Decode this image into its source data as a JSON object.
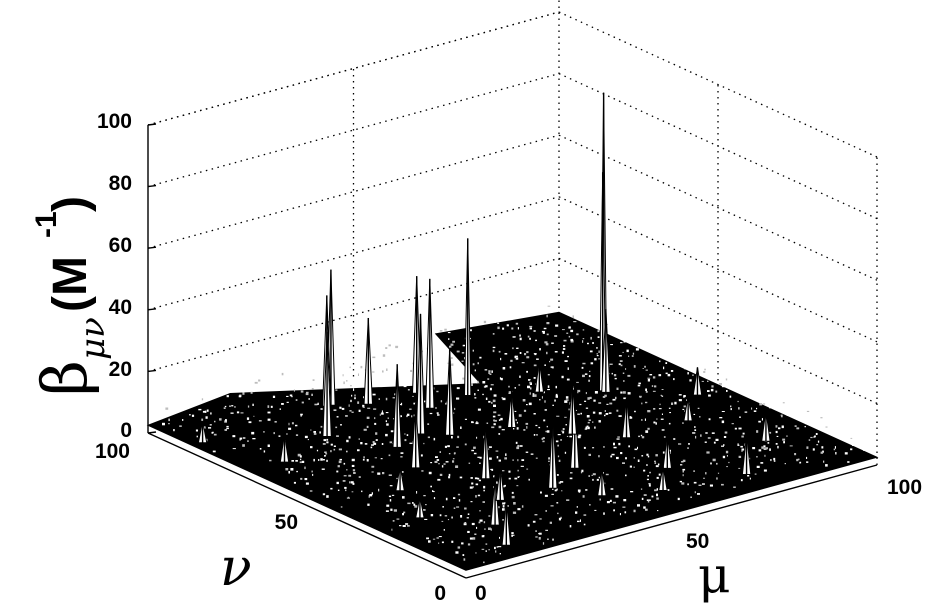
{
  "chart_data": {
    "type": "surface",
    "zlabel": {
      "symbol": "β",
      "subscript": "μν",
      "unit": "(M",
      "exponent": "-1",
      "close": ")"
    },
    "xlabel": "μ",
    "ylabel": "ν",
    "xlim": [
      0,
      100
    ],
    "ylim": [
      0,
      100
    ],
    "zlim": [
      0,
      100
    ],
    "x_ticks": [
      "0",
      "50",
      "100"
    ],
    "y_ticks": [
      "0",
      "50",
      "100"
    ],
    "z_ticks": [
      "0",
      "20",
      "40",
      "60",
      "80",
      "100"
    ],
    "grid": true,
    "surface_color": "#000000",
    "background": "#ffffff",
    "baseline_level": [
      0,
      5
    ],
    "peaks": [
      {
        "mu": 83,
        "nu": 64,
        "value": 97
      },
      {
        "mu": 82,
        "nu": 63,
        "value": 72
      },
      {
        "mu": 82,
        "nu": 62,
        "value": 28
      },
      {
        "mu": 60,
        "nu": 77,
        "value": 52
      },
      {
        "mu": 53,
        "nu": 84,
        "value": 39
      },
      {
        "mu": 36,
        "nu": 89,
        "value": 45
      },
      {
        "mu": 35,
        "nu": 89,
        "value": 37
      },
      {
        "mu": 50,
        "nu": 76,
        "value": 43
      },
      {
        "mu": 42,
        "nu": 85,
        "value": 29
      },
      {
        "mu": 25,
        "nu": 76,
        "value": 35
      },
      {
        "mu": 40,
        "nu": 66,
        "value": 40
      },
      {
        "mu": 44,
        "nu": 62,
        "value": 29
      },
      {
        "mu": 32,
        "nu": 63,
        "value": 28
      },
      {
        "mu": 28,
        "nu": 52,
        "value": 22
      },
      {
        "mu": 35,
        "nu": 39,
        "value": 20
      },
      {
        "mu": 42,
        "nu": 27,
        "value": 25
      },
      {
        "mu": 52,
        "nu": 33,
        "value": 23
      },
      {
        "mu": 63,
        "nu": 48,
        "value": 18
      },
      {
        "mu": 70,
        "nu": 40,
        "value": 14
      },
      {
        "mu": 21,
        "nu": 18,
        "value": 17
      },
      {
        "mu": 16,
        "nu": 8,
        "value": 16
      },
      {
        "mu": 4,
        "nu": 88,
        "value": 8
      },
      {
        "mu": 10,
        "nu": 70,
        "value": 10
      },
      {
        "mu": 76,
        "nu": 10,
        "value": 14
      },
      {
        "mu": 90,
        "nu": 22,
        "value": 11
      },
      {
        "mu": 66,
        "nu": 22,
        "value": 12
      },
      {
        "mu": 58,
        "nu": 13,
        "value": 9
      },
      {
        "mu": 30,
        "nu": 28,
        "value": 12
      },
      {
        "mu": 47,
        "nu": 18,
        "value": 10
      },
      {
        "mu": 18,
        "nu": 44,
        "value": 9
      },
      {
        "mu": 72,
        "nu": 70,
        "value": 11
      },
      {
        "mu": 56,
        "nu": 58,
        "value": 13
      },
      {
        "mu": 85,
        "nu": 40,
        "value": 9
      },
      {
        "mu": 12,
        "nu": 30,
        "value": 8
      },
      {
        "mu": 95,
        "nu": 50,
        "value": 10
      }
    ]
  }
}
